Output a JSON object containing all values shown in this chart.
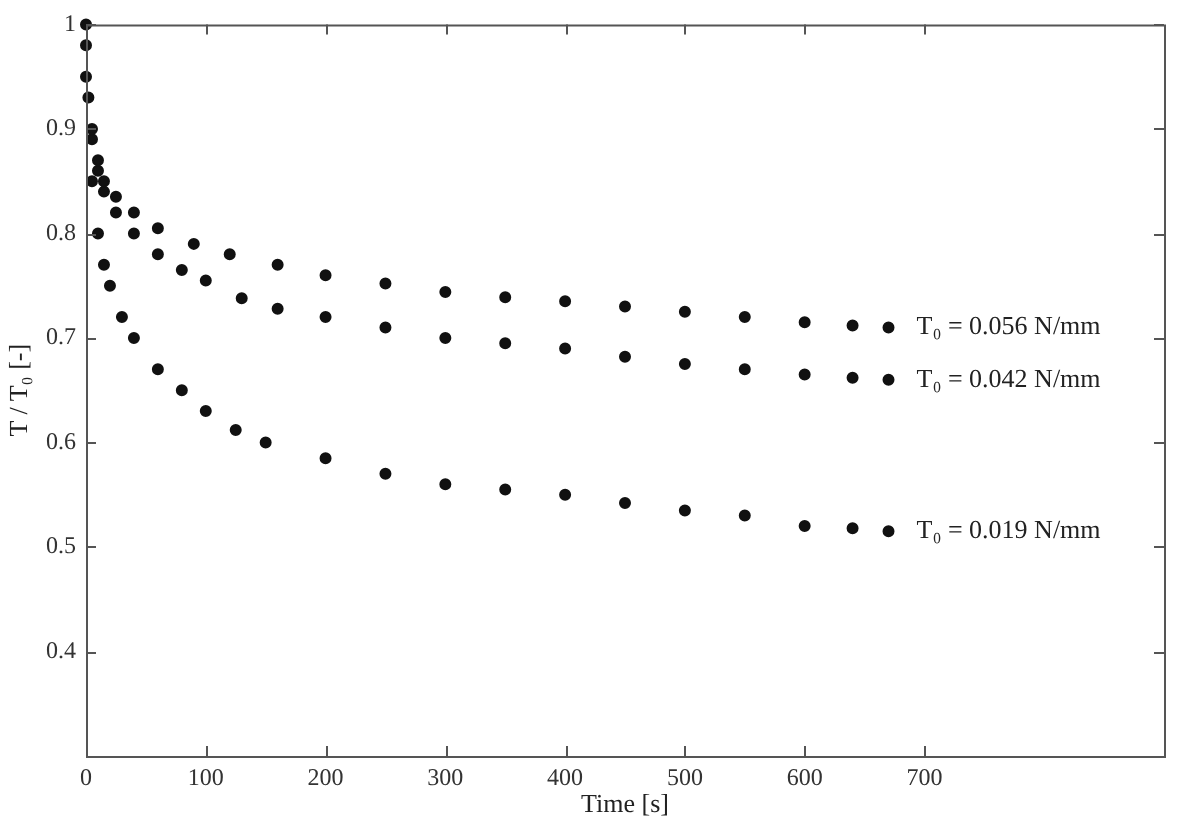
{
  "chart_data": {
    "type": "scatter",
    "xlabel": "Time [s]",
    "ylabel": "T / T₀ [-]",
    "xlim": [
      0,
      900
    ],
    "ylim": [
      0.3,
      1
    ],
    "xticks": [
      0,
      100,
      200,
      300,
      400,
      500,
      600,
      700
    ],
    "yticks": [
      0.4,
      0.5,
      0.6,
      0.7,
      0.8,
      0.9,
      1
    ],
    "grid": false,
    "legend": false,
    "marker": "circle",
    "series": [
      {
        "name": "T₀ = 0.056 N/mm",
        "color": "#111111",
        "x": [
          0,
          5,
          10,
          15,
          25,
          40,
          60,
          90,
          120,
          160,
          200,
          250,
          300,
          350,
          400,
          450,
          500,
          550,
          600,
          640,
          670
        ],
        "values": [
          1,
          0.9,
          0.87,
          0.85,
          0.835,
          0.82,
          0.805,
          0.79,
          0.78,
          0.77,
          0.76,
          0.752,
          0.744,
          0.739,
          0.735,
          0.73,
          0.725,
          0.72,
          0.715,
          0.712,
          0.71
        ]
      },
      {
        "name": "T₀ = 0.042 N/mm",
        "color": "#111111",
        "x": [
          0,
          2,
          5,
          10,
          15,
          25,
          40,
          60,
          80,
          100,
          130,
          160,
          200,
          250,
          300,
          350,
          400,
          450,
          500,
          550,
          600,
          640,
          670
        ],
        "values": [
          0.98,
          0.93,
          0.89,
          0.86,
          0.84,
          0.82,
          0.8,
          0.78,
          0.765,
          0.755,
          0.738,
          0.728,
          0.72,
          0.71,
          0.7,
          0.695,
          0.69,
          0.682,
          0.675,
          0.67,
          0.665,
          0.662,
          0.66
        ]
      },
      {
        "name": "T₀ = 0.019 N/mm",
        "color": "#111111",
        "x": [
          0,
          5,
          10,
          15,
          20,
          30,
          40,
          60,
          80,
          100,
          125,
          150,
          200,
          250,
          300,
          350,
          400,
          450,
          500,
          550,
          600,
          640,
          670
        ],
        "values": [
          0.95,
          0.85,
          0.8,
          0.77,
          0.75,
          0.72,
          0.7,
          0.67,
          0.65,
          0.63,
          0.612,
          0.6,
          0.585,
          0.57,
          0.56,
          0.555,
          0.55,
          0.542,
          0.535,
          0.53,
          0.52,
          0.518,
          0.515
        ]
      }
    ]
  }
}
